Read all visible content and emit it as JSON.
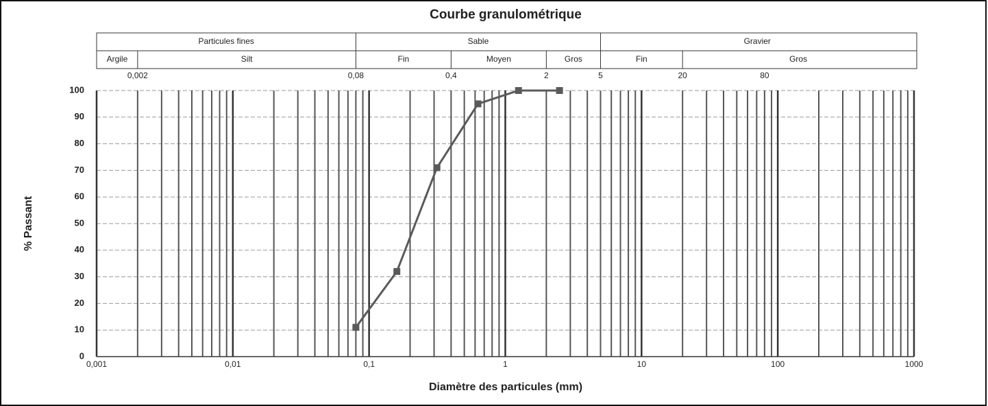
{
  "chart_data": {
    "type": "line",
    "title": "Courbe granulométrique",
    "x_label": "Diamètre des particules (mm)",
    "y_label": "% Passant",
    "log_x": true,
    "grid": true,
    "minor_grid": true,
    "xlim": [
      0.001,
      1000
    ],
    "ylim": [
      0,
      100
    ],
    "xticks": [
      {
        "value": 0.001,
        "label": "0,001"
      },
      {
        "value": 0.01,
        "label": "0,01"
      },
      {
        "value": 0.1,
        "label": "0,1"
      },
      1,
      10,
      100,
      1000
    ],
    "yticks": [
      0,
      10,
      20,
      30,
      40,
      50,
      60,
      70,
      80,
      90,
      100
    ],
    "series": [
      {
        "color": "#5a5a5a",
        "x": [
          0.08,
          0.16,
          0.315,
          0.63,
          1.25,
          2.5
        ],
        "values": [
          11,
          32,
          71,
          95,
          100,
          100
        ]
      }
    ],
    "classification": {
      "groups": [
        {
          "label": "Particules fines",
          "range": [
            0.001,
            0.08
          ]
        },
        {
          "label": "Sable",
          "range": [
            0.08,
            5
          ]
        },
        {
          "label": "Gravier",
          "range": [
            5,
            1000
          ]
        }
      ],
      "classes": [
        {
          "label": "Argile",
          "range": [
            0.001,
            0.002
          ]
        },
        {
          "label": "Silt",
          "range": [
            0.002,
            0.08
          ]
        },
        {
          "label": "Fin",
          "range": [
            0.08,
            0.4
          ]
        },
        {
          "label": "Moyen",
          "range": [
            0.4,
            2
          ]
        },
        {
          "label": "Gros",
          "range": [
            2,
            5
          ]
        },
        {
          "label": "Fin",
          "range": [
            5,
            20
          ]
        },
        {
          "label": "Gros",
          "range": [
            20,
            1000
          ]
        }
      ],
      "boundaries": [
        {
          "value": 0.002,
          "label": "0,002"
        },
        {
          "value": 0.08,
          "label": "0,08"
        },
        {
          "value": 0.4,
          "label": "0,4"
        },
        2,
        5,
        20,
        80
      ]
    }
  }
}
